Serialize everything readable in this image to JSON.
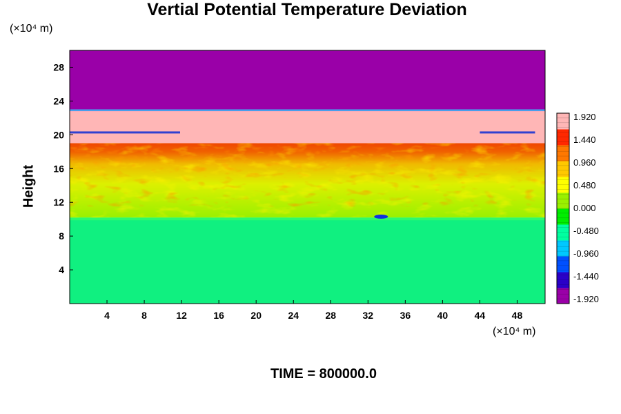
{
  "chart_data": {
    "type": "heatmap",
    "title": "Vertial Potential Temperature Deviation",
    "ylabel": "Height",
    "xlabel": "",
    "x_unit": "(×10⁴ m)",
    "y_unit": "(×10⁴ m)",
    "xlim": [
      0,
      51
    ],
    "ylim": [
      0,
      30
    ],
    "x_ticks": [
      4,
      8,
      12,
      16,
      20,
      24,
      28,
      32,
      36,
      40,
      44,
      48
    ],
    "y_ticks": [
      4,
      8,
      12,
      16,
      20,
      24,
      28
    ],
    "colorbar": {
      "levels": [
        1.92,
        1.44,
        0.96,
        0.48,
        0.0,
        -0.48,
        -0.96,
        -1.44,
        -1.92
      ],
      "labels": [
        "1.920",
        "1.440",
        "0.960",
        "0.480",
        "0.000",
        "-0.480",
        "-0.960",
        "-1.440",
        "-1.920"
      ],
      "min": -1.92,
      "max": 1.92,
      "colors": [
        "#9a00a8",
        "#2a00c8",
        "#0050ff",
        "#00c8ff",
        "#00ffa0",
        "#00ee00",
        "#9af000",
        "#ffff00",
        "#ffc800",
        "#ff7800",
        "#ff2800",
        "#ffb6b6"
      ]
    },
    "bands": [
      {
        "y0": 0,
        "y1": 10.2,
        "value": -0.25,
        "description_color": "#10f080"
      },
      {
        "y0": 10.2,
        "y1": 19.0,
        "value": 0.45,
        "description_color": "#9af000"
      },
      {
        "y0": 19.0,
        "y1": 22.8,
        "value": 1.92,
        "description_color": "#ffb6b6"
      },
      {
        "y0": 22.8,
        "y1": 30,
        "value": -1.92,
        "description_color": "#9a00a8"
      }
    ]
  },
  "footer": {
    "time": "TIME = 800000.0"
  }
}
